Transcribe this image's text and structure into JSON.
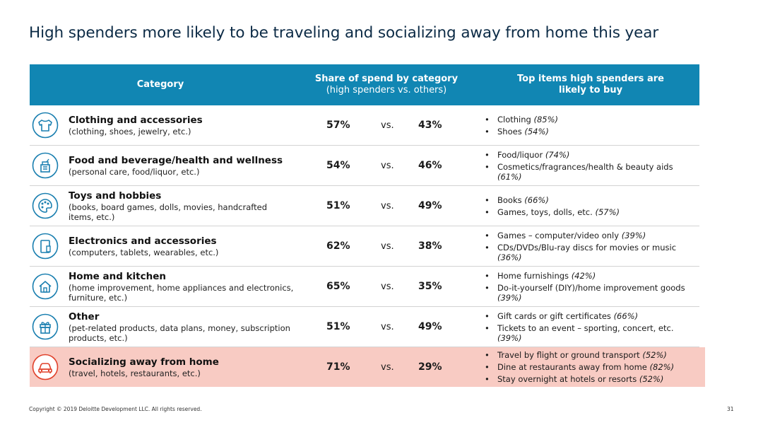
{
  "title": "High spenders more likely to be traveling and socializing away from home this year",
  "header": {
    "category": "Category",
    "share_line1": "Share of spend by category",
    "share_line2": "(high spenders vs. others)",
    "top_line1": "Top items high spenders are",
    "top_line2": "likely to buy"
  },
  "rows": [
    {
      "icon": "shirt-icon",
      "name": "Clothing and accessories",
      "desc": "(clothing, shoes, jewelry, etc.)",
      "high": "57%",
      "vs": "vs.",
      "others": "43%",
      "items": [
        {
          "text": "Clothing ",
          "pct": "(85%)"
        },
        {
          "text": "Shoes ",
          "pct": "(54%)"
        }
      ]
    },
    {
      "icon": "food-health-icon",
      "name": "Food and beverage/health and wellness",
      "desc": "(personal care, food/liquor, etc.)",
      "high": "54%",
      "vs": "vs.",
      "others": "46%",
      "items": [
        {
          "text": "Food/liquor ",
          "pct": "(74%)"
        },
        {
          "text": "Cosmetics/fragrances/health & beauty aids ",
          "pct": "(61%)"
        }
      ]
    },
    {
      "icon": "palette-icon",
      "name": "Toys and hobbies",
      "desc": "(books, board games, dolls, movies, handcrafted items, etc.)",
      "high": "51%",
      "vs": "vs.",
      "others": "49%",
      "items": [
        {
          "text": "Books ",
          "pct": "(66%)"
        },
        {
          "text": "Games, toys, dolls, etc. ",
          "pct": "(57%)"
        }
      ]
    },
    {
      "icon": "devices-icon",
      "name": "Electronics and accessories",
      "desc": "(computers, tablets, wearables, etc.)",
      "high": "62%",
      "vs": "vs.",
      "others": "38%",
      "items": [
        {
          "text": "Games – computer/video only ",
          "pct": "(39%)"
        },
        {
          "text": "CDs/DVDs/Blu-ray discs for movies or music ",
          "pct": "(36%)"
        }
      ]
    },
    {
      "icon": "home-icon",
      "name": "Home and kitchen",
      "desc": "(home improvement, home appliances and electronics, furniture, etc.)",
      "high": "65%",
      "vs": "vs.",
      "others": "35%",
      "items": [
        {
          "text": "Home furnishings ",
          "pct": "(42%)"
        },
        {
          "text": "Do-it-yourself (DIY)/home improvement goods ",
          "pct": "(39%)"
        }
      ]
    },
    {
      "icon": "gift-icon",
      "name": "Other",
      "desc": "(pet-related products, data plans, money, subscription products, etc.)",
      "high": "51%",
      "vs": "vs.",
      "others": "49%",
      "items": [
        {
          "text": "Gift cards or gift certificates ",
          "pct": "(66%)"
        },
        {
          "text": "Tickets to an event – sporting, concert, etc. ",
          "pct": "(39%)"
        }
      ]
    },
    {
      "icon": "car-icon",
      "name": "Socializing away from home",
      "desc": "(travel, hotels, restaurants, etc.)",
      "high": "71%",
      "vs": "vs.",
      "others": "29%",
      "highlight": true,
      "items": [
        {
          "text": "Travel by flight or ground transport ",
          "pct": "(52%)"
        },
        {
          "text": "Dine at restaurants away from home ",
          "pct": "(82%)"
        },
        {
          "text": "Stay overnight at hotels or resorts ",
          "pct": "(52%)"
        }
      ]
    }
  ],
  "colors": {
    "header_bg": "#1186b3",
    "icon_blue": "#1a7fb0",
    "icon_red": "#e0402a",
    "highlight_bg": "#f8cbc3"
  },
  "footer": "Copyright © 2019 Deloitte Development LLC. All rights reserved.",
  "page_number": "31"
}
